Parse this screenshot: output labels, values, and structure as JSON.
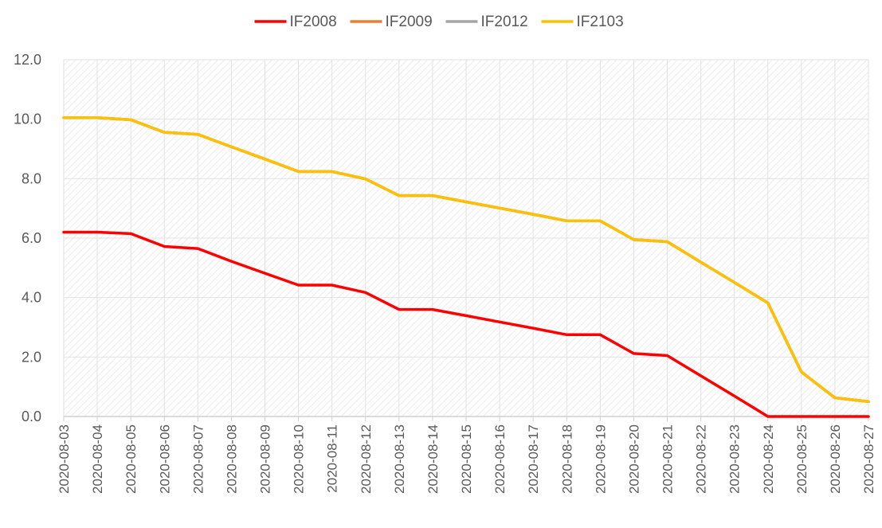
{
  "chart_data": {
    "type": "line",
    "title": "",
    "xlabel": "",
    "ylabel": "",
    "x": [
      "2020-08-03",
      "2020-08-04",
      "2020-08-05",
      "2020-08-06",
      "2020-08-07",
      "2020-08-08",
      "2020-08-09",
      "2020-08-10",
      "2020-08-11",
      "2020-08-12",
      "2020-08-13",
      "2020-08-14",
      "2020-08-15",
      "2020-08-16",
      "2020-08-17",
      "2020-08-18",
      "2020-08-19",
      "2020-08-20",
      "2020-08-21",
      "2020-08-22",
      "2020-08-23",
      "2020-08-24",
      "2020-08-25",
      "2020-08-26",
      "2020-08-27"
    ],
    "ylim": [
      0,
      12
    ],
    "yticks": [
      "0.0",
      "2.0",
      "4.0",
      "6.0",
      "8.0",
      "10.0",
      "12.0"
    ],
    "grid": true,
    "legend_position": "top",
    "series": [
      {
        "name": "IF2008",
        "color": "#ff0000",
        "values": [
          6.2,
          6.2,
          6.15,
          5.72,
          5.65,
          5.22,
          4.82,
          4.42,
          4.42,
          4.17,
          3.6,
          3.6,
          3.39,
          3.18,
          2.97,
          2.75,
          2.75,
          2.12,
          2.05,
          1.37,
          0.69,
          0.0,
          0.0,
          0.0,
          0.0
        ]
      },
      {
        "name": "IF2009",
        "color": "#ed7d31",
        "values": [
          10.05,
          10.05,
          9.98,
          9.56,
          9.49,
          9.07,
          8.66,
          8.24,
          8.24,
          7.99,
          7.43,
          7.43,
          7.22,
          7.01,
          6.8,
          6.58,
          6.58,
          5.95,
          5.88,
          5.19,
          4.51,
          3.82,
          1.5,
          0.63,
          0.5
        ]
      },
      {
        "name": "IF2012",
        "color": "#a5a5a5",
        "values": [
          10.05,
          10.05,
          9.98,
          9.56,
          9.49,
          9.07,
          8.66,
          8.24,
          8.24,
          7.99,
          7.43,
          7.43,
          7.22,
          7.01,
          6.8,
          6.58,
          6.58,
          5.95,
          5.88,
          5.19,
          4.51,
          3.82,
          1.5,
          0.63,
          0.5
        ]
      },
      {
        "name": "IF2103",
        "color": "#ffc000",
        "values": [
          10.05,
          10.05,
          9.98,
          9.56,
          9.49,
          9.07,
          8.66,
          8.24,
          8.24,
          7.99,
          7.43,
          7.43,
          7.22,
          7.01,
          6.8,
          6.58,
          6.58,
          5.95,
          5.88,
          5.19,
          4.51,
          3.82,
          1.5,
          0.63,
          0.5
        ]
      }
    ]
  }
}
